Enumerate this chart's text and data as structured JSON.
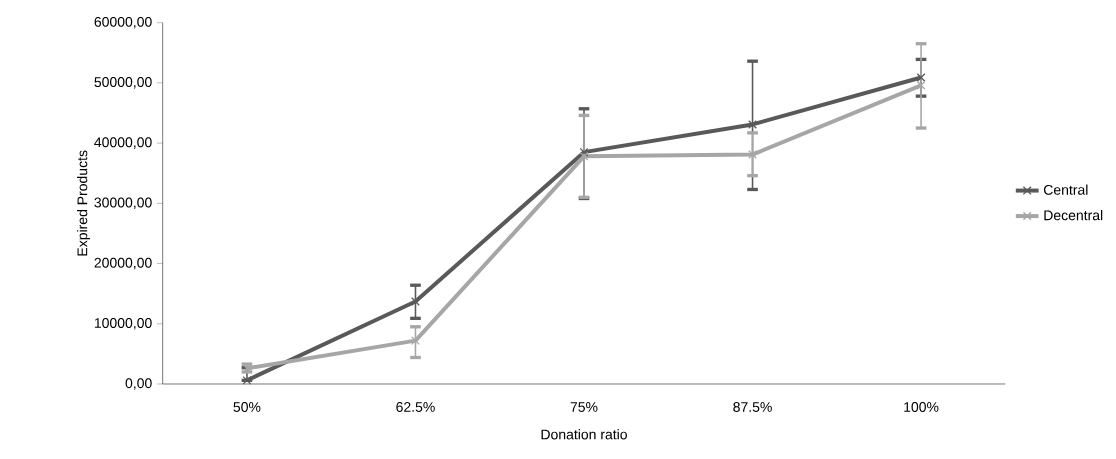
{
  "chart_data": {
    "type": "line",
    "xlabel": "Donation ratio",
    "ylabel": "Expired Products",
    "categories": [
      "50%",
      "62.5%",
      "75%",
      "87.5%",
      "100%"
    ],
    "series": [
      {
        "name": "Central",
        "color": "#595959",
        "values": [
          600,
          13700,
          38500,
          43100,
          50900
        ],
        "errors": [
          [
            600,
            2700
          ],
          [
            10900,
            16400
          ],
          [
            30800,
            45700
          ],
          [
            32300,
            53600
          ],
          [
            47800,
            53900
          ]
        ]
      },
      {
        "name": "Decentral",
        "color": "#a6a6a6",
        "values": [
          2600,
          7200,
          37800,
          38100,
          49600
        ],
        "errors": [
          [
            2000,
            3300
          ],
          [
            4400,
            9500
          ],
          [
            31000,
            44600
          ],
          [
            34600,
            41700
          ],
          [
            42500,
            56500
          ]
        ]
      }
    ],
    "ylim": [
      0,
      60000
    ],
    "yticks": [
      {
        "value": 0,
        "label": "0,00"
      },
      {
        "value": 10000,
        "label": "10000,00"
      },
      {
        "value": 20000,
        "label": "20000,00"
      },
      {
        "value": 30000,
        "label": "30000,00"
      },
      {
        "value": 40000,
        "label": "40000,00"
      },
      {
        "value": 50000,
        "label": "50000,00"
      },
      {
        "value": 60000,
        "label": "60000,00"
      }
    ],
    "marker": "cross",
    "legend": "right",
    "grid": false
  }
}
